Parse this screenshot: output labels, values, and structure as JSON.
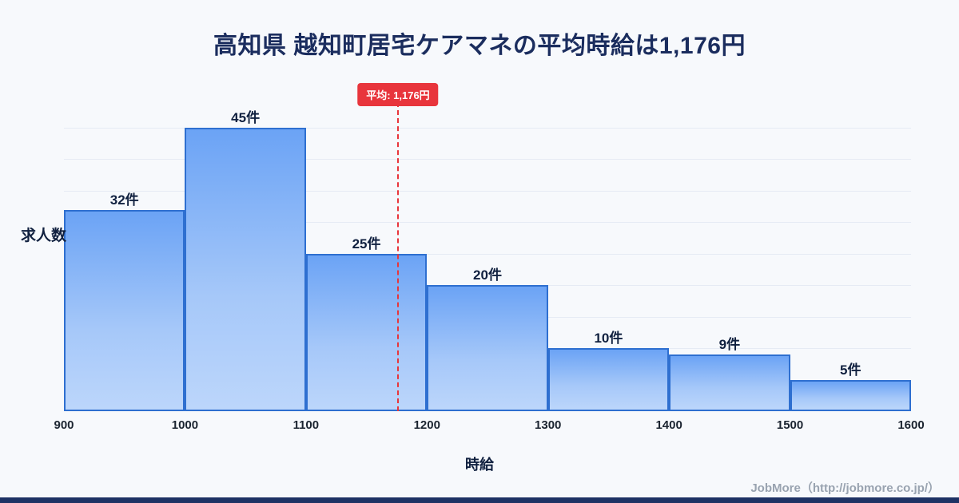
{
  "page": {
    "title": "高知県 越知町居宅ケアマネの平均時給は1,176円",
    "footer": "JobMore（http://jobmore.co.jp/）"
  },
  "chart_data": {
    "type": "bar",
    "subtype": "histogram",
    "title": "高知県 越知町居宅ケアマネの平均時給は1,176円",
    "xlabel": "時給",
    "ylabel": "求人数",
    "bins": [
      900,
      1000,
      1100,
      1200,
      1300,
      1400,
      1500,
      1600
    ],
    "categories": [
      "900-1000",
      "1000-1100",
      "1100-1200",
      "1200-1300",
      "1300-1400",
      "1400-1500",
      "1500-1600"
    ],
    "values": [
      32,
      45,
      25,
      20,
      10,
      9,
      5
    ],
    "bar_labels": [
      "32件",
      "45件",
      "25件",
      "20件",
      "10件",
      "9件",
      "5件"
    ],
    "x_ticks": [
      "900",
      "1000",
      "1100",
      "1200",
      "1300",
      "1400",
      "1500",
      "1600"
    ],
    "xlim": [
      900,
      1600
    ],
    "ylim": [
      0,
      50
    ],
    "grid": "horizontal",
    "legend": "none",
    "mean_line": {
      "value": 1176,
      "label": "平均: 1,176円"
    },
    "colors": {
      "bar_gradient_top": "#6ba3f5",
      "bar_gradient_bottom": "#bcd6fb",
      "bar_border": "#2e6fd0",
      "mean_line": "#e8353c",
      "title": "#1b2d5e",
      "background": "#f7f9fc",
      "footer_text": "#99a3b0"
    }
  }
}
